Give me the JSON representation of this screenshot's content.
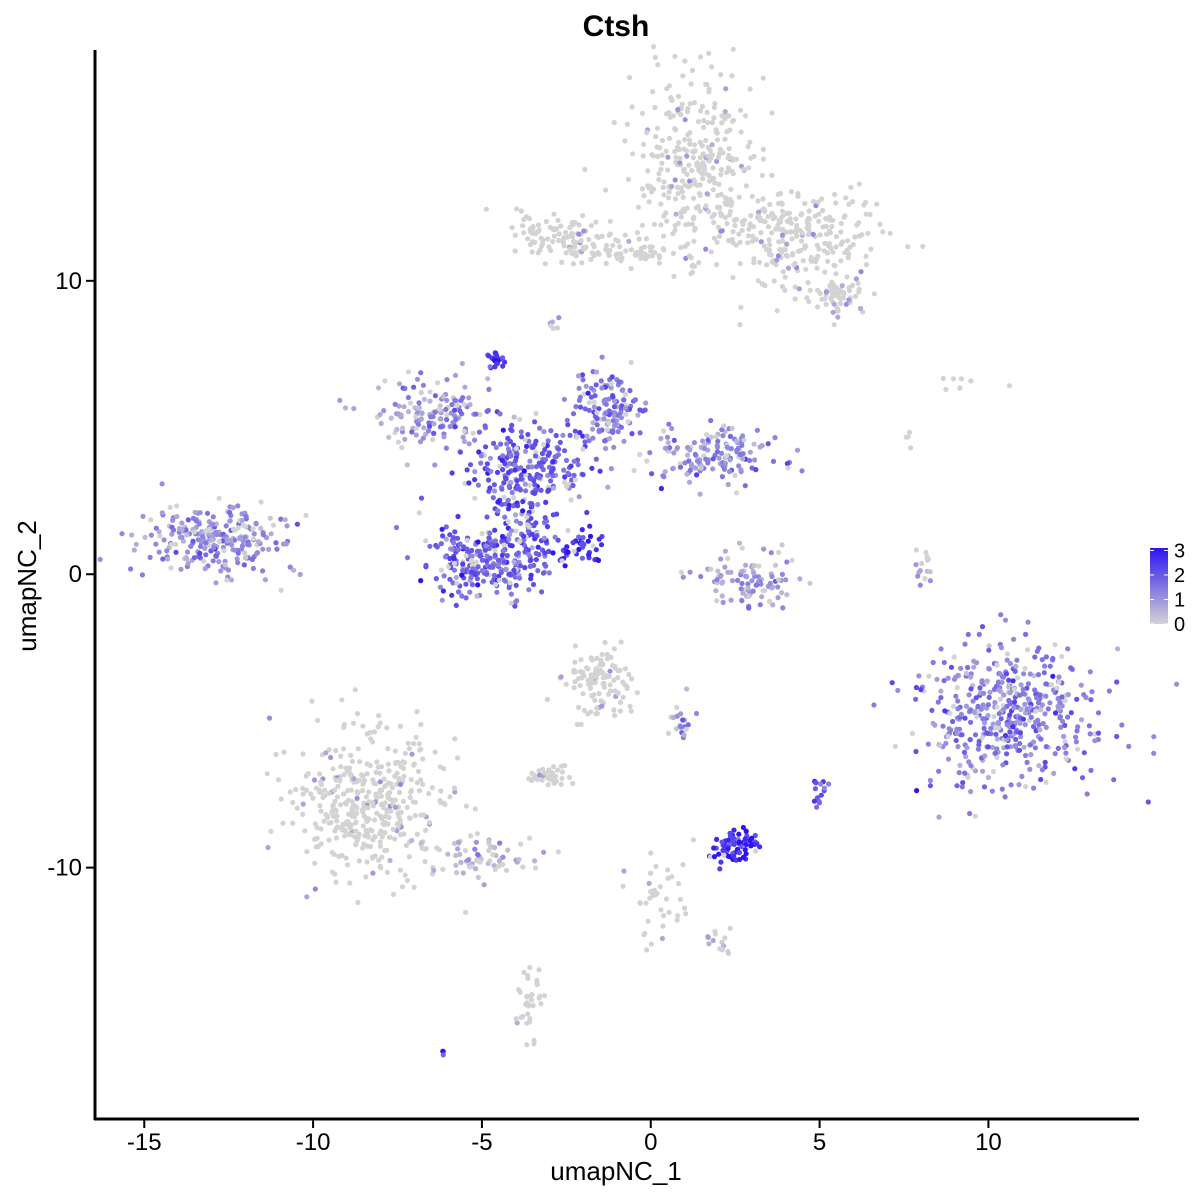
{
  "chart_data": {
    "type": "scatter",
    "title": "Ctsh",
    "xlabel": "umapNC_1",
    "ylabel": "umapNC_2",
    "xlim": [
      -16.4,
      14.4
    ],
    "ylim": [
      -18.5,
      17.8
    ],
    "x_ticks": [
      -15,
      -10,
      -5,
      0,
      5,
      10
    ],
    "x_tick_labels": [
      "-15",
      "-10",
      "-5",
      "0",
      "5",
      "10"
    ],
    "y_ticks": [
      -10,
      0,
      10
    ],
    "y_tick_labels": [
      "-10",
      "0",
      "10"
    ],
    "color_scale": {
      "low_color": "#d3d3d3",
      "high_color": "#2b14f0",
      "min": 0,
      "max": 3.1,
      "ticks": [
        0,
        1,
        2,
        3
      ],
      "tick_labels": [
        "0",
        "1",
        "2",
        "3"
      ]
    },
    "legend_position": "right",
    "grid": false,
    "clusters": [
      {
        "cx": 1.3,
        "cy": 14.0,
        "sx": 1.0,
        "sy": 1.5,
        "n": 320,
        "expr": 0.05
      },
      {
        "cx": 4.2,
        "cy": 11.5,
        "sx": 1.3,
        "sy": 0.8,
        "n": 260,
        "expr": 0.1
      },
      {
        "cx": 5.6,
        "cy": 9.5,
        "sx": 0.5,
        "sy": 0.3,
        "n": 60,
        "expr": 0.1
      },
      {
        "cx": -2.5,
        "cy": 11.6,
        "sx": 0.7,
        "sy": 0.4,
        "n": 100,
        "expr": 0.1
      },
      {
        "cx": -0.5,
        "cy": 11.0,
        "sx": 1.3,
        "sy": 0.25,
        "n": 60,
        "expr": 0.05
      },
      {
        "cx": -3.0,
        "cy": 8.6,
        "sx": 0.15,
        "sy": 0.25,
        "n": 6,
        "expr": 0.3
      },
      {
        "cx": -4.6,
        "cy": 7.3,
        "sx": 0.15,
        "sy": 0.15,
        "n": 25,
        "expr": 2.7
      },
      {
        "cx": -6.5,
        "cy": 5.4,
        "sx": 0.9,
        "sy": 0.6,
        "n": 140,
        "expr": 1.0
      },
      {
        "cx": -3.7,
        "cy": 3.8,
        "sx": 1.0,
        "sy": 0.7,
        "n": 220,
        "expr": 1.9
      },
      {
        "cx": -1.2,
        "cy": 5.6,
        "sx": 0.5,
        "sy": 0.7,
        "n": 130,
        "expr": 1.5
      },
      {
        "cx": 1.8,
        "cy": 4.1,
        "sx": 1.0,
        "sy": 0.5,
        "n": 150,
        "expr": 1.2
      },
      {
        "cx": -5.2,
        "cy": 0.4,
        "sx": 0.8,
        "sy": 0.6,
        "n": 200,
        "expr": 1.8
      },
      {
        "cx": -3.7,
        "cy": 1.4,
        "sx": 0.5,
        "sy": 1.1,
        "n": 160,
        "expr": 1.9
      },
      {
        "cx": -2.2,
        "cy": 1.0,
        "sx": 0.4,
        "sy": 0.4,
        "n": 40,
        "expr": 2.8
      },
      {
        "cx": -13.0,
        "cy": 1.2,
        "sx": 1.1,
        "sy": 0.6,
        "n": 260,
        "expr": 1.1
      },
      {
        "cx": 3.0,
        "cy": -0.2,
        "sx": 0.8,
        "sy": 0.5,
        "n": 100,
        "expr": 0.8
      },
      {
        "cx": 8.1,
        "cy": 0.3,
        "sx": 0.15,
        "sy": 0.4,
        "n": 15,
        "expr": 0.5
      },
      {
        "cx": 10.6,
        "cy": -4.8,
        "sx": 1.3,
        "sy": 1.3,
        "n": 480,
        "expr": 1.4
      },
      {
        "cx": -1.5,
        "cy": -3.7,
        "sx": 0.5,
        "sy": 0.6,
        "n": 110,
        "expr": 0.1
      },
      {
        "cx": 0.9,
        "cy": -5.0,
        "sx": 0.2,
        "sy": 0.4,
        "n": 20,
        "expr": 1.0
      },
      {
        "cx": -8.3,
        "cy": -7.9,
        "sx": 1.1,
        "sy": 1.2,
        "n": 420,
        "expr": 0.1
      },
      {
        "cx": -5.2,
        "cy": -9.6,
        "sx": 0.9,
        "sy": 0.4,
        "n": 70,
        "expr": 0.3
      },
      {
        "cx": -3.0,
        "cy": -6.9,
        "sx": 0.3,
        "sy": 0.2,
        "n": 40,
        "expr": 0.05
      },
      {
        "cx": 2.5,
        "cy": -9.3,
        "sx": 0.35,
        "sy": 0.3,
        "n": 80,
        "expr": 2.8
      },
      {
        "cx": 5.0,
        "cy": -7.3,
        "sx": 0.1,
        "sy": 0.25,
        "n": 15,
        "expr": 2.0
      },
      {
        "cx": 0.3,
        "cy": -11.2,
        "sx": 0.5,
        "sy": 0.9,
        "n": 40,
        "expr": 0.1
      },
      {
        "cx": 2.1,
        "cy": -12.5,
        "sx": 0.3,
        "sy": 0.2,
        "n": 15,
        "expr": 0.3
      },
      {
        "cx": -3.6,
        "cy": -14.5,
        "sx": 0.2,
        "sy": 0.6,
        "n": 35,
        "expr": 0.05
      },
      {
        "cx": -6.1,
        "cy": -16.3,
        "sx": 0.05,
        "sy": 0.05,
        "n": 4,
        "expr": 2.0
      },
      {
        "cx": 7.7,
        "cy": 4.7,
        "sx": 0.1,
        "sy": 0.2,
        "n": 4,
        "expr": 0.0
      },
      {
        "cx": 9.5,
        "cy": 6.6,
        "sx": 0.5,
        "sy": 0.2,
        "n": 8,
        "expr": 0.0
      }
    ]
  }
}
